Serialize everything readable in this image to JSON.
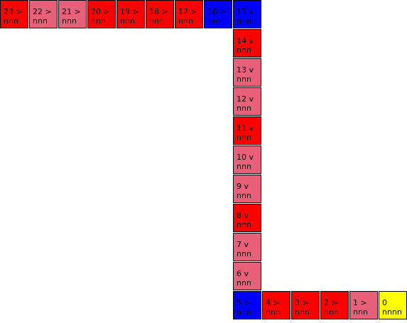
{
  "colors": {
    "red": "#ff0000",
    "pink": "#e8607a",
    "blue": "#0000ff",
    "yellow": "#ffff00"
  },
  "cells": [
    {
      "index": "23",
      "arrow": ">",
      "label": "23 >",
      "sub": "nnn",
      "color": "red"
    },
    {
      "index": "22",
      "arrow": ">",
      "label": "22 >",
      "sub": "nnn",
      "color": "pink"
    },
    {
      "index": "21",
      "arrow": ">",
      "label": "21 >",
      "sub": "nnn",
      "color": "pink"
    },
    {
      "index": "20",
      "arrow": ">",
      "label": "20 >",
      "sub": "nnn",
      "color": "red"
    },
    {
      "index": "19",
      "arrow": ">",
      "label": "19 >",
      "sub": "nnn",
      "color": "red"
    },
    {
      "index": "18",
      "arrow": ">",
      "label": "18 >",
      "sub": "nnn",
      "color": "red"
    },
    {
      "index": "17",
      "arrow": ">",
      "label": "17 >",
      "sub": "nnn",
      "color": "red"
    },
    {
      "index": "16",
      "arrow": ">",
      "label": "16 >",
      "sub": "nnn",
      "color": "blue"
    },
    {
      "index": "15",
      "arrow": "v",
      "label": "15 v",
      "sub": "nnn",
      "color": "blue"
    },
    {
      "index": "14",
      "arrow": "v",
      "label": "14 v",
      "sub": "nnn",
      "color": "red"
    },
    {
      "index": "13",
      "arrow": "v",
      "label": "13 v",
      "sub": "nnn",
      "color": "pink"
    },
    {
      "index": "12",
      "arrow": "v",
      "label": "12 v",
      "sub": "nnn",
      "color": "pink"
    },
    {
      "index": "11",
      "arrow": "v",
      "label": "11 v",
      "sub": "nnn",
      "color": "red"
    },
    {
      "index": "10",
      "arrow": "v",
      "label": "10 v",
      "sub": "nnn",
      "color": "pink"
    },
    {
      "index": "9",
      "arrow": "v",
      "label": "9 v",
      "sub": "nnn",
      "color": "pink"
    },
    {
      "index": "8",
      "arrow": "v",
      "label": "8 v",
      "sub": "nnn",
      "color": "red"
    },
    {
      "index": "7",
      "arrow": "v",
      "label": "7 v",
      "sub": "nnn",
      "color": "pink"
    },
    {
      "index": "6",
      "arrow": "v",
      "label": "6 v",
      "sub": "nnn",
      "color": "pink"
    },
    {
      "index": "5",
      "arrow": ">",
      "label": "5 >",
      "sub": "nnn",
      "color": "blue"
    },
    {
      "index": "4",
      "arrow": ">",
      "label": "4 >",
      "sub": "nnn",
      "color": "red"
    },
    {
      "index": "3",
      "arrow": ">",
      "label": "3 >",
      "sub": "nnn",
      "color": "red"
    },
    {
      "index": "2",
      "arrow": ">",
      "label": "2 >",
      "sub": "nnn",
      "color": "red"
    },
    {
      "index": "1",
      "arrow": ">",
      "label": "1 >",
      "sub": "nnn",
      "color": "pink"
    },
    {
      "index": "0",
      "arrow": "",
      "label": "0",
      "sub": "nnnn",
      "color": "yellow"
    }
  ]
}
